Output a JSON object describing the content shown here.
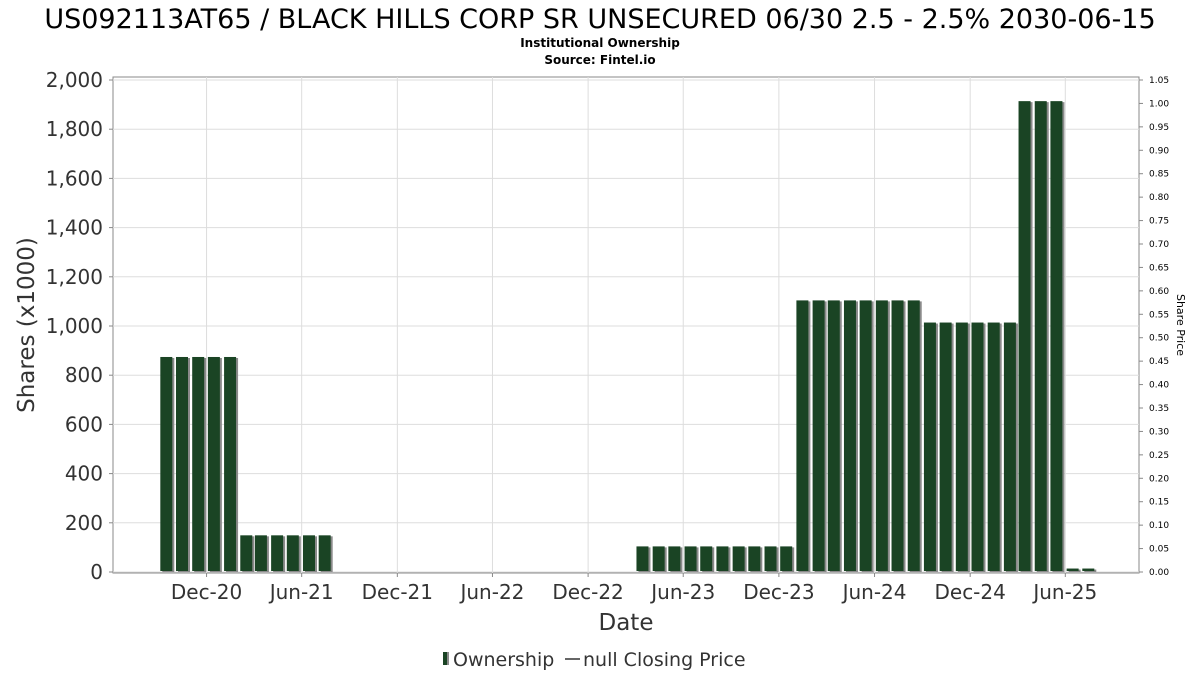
{
  "chart_data": {
    "type": "bar",
    "title": "US092113AT65 / BLACK HILLS CORP SR UNSECURED 06/30 2.5 - 2.5% 2030-06-15",
    "subtitle_lines": [
      "Institutional Ownership",
      "Source: Fintel.io"
    ],
    "xlabel": "Date",
    "ylabel": "Shares (x1000)",
    "y2label": "Share Price",
    "ylim": [
      0,
      2000
    ],
    "y2lim": [
      0,
      1.05
    ],
    "yticks": [
      0,
      200,
      400,
      600,
      800,
      1000,
      1200,
      1400,
      1600,
      1800,
      2000
    ],
    "ytick_labels": [
      "0",
      "200",
      "400",
      "600",
      "800",
      "1,000",
      "1,200",
      "1,400",
      "1,600",
      "1,800",
      "2,000"
    ],
    "y2ticks": [
      0,
      0.05,
      0.1,
      0.15,
      0.2,
      0.25,
      0.3,
      0.35,
      0.4,
      0.45,
      0.5,
      0.55,
      0.6,
      0.65,
      0.7,
      0.75,
      0.8,
      0.85,
      0.9,
      0.95,
      1.0,
      1.05
    ],
    "y2tick_labels": [
      "0.00",
      "0.05",
      "0.10",
      "0.15",
      "0.20",
      "0.25",
      "0.30",
      "0.35",
      "0.40",
      "0.45",
      "0.50",
      "0.55",
      "0.60",
      "0.65",
      "0.70",
      "0.75",
      "0.80",
      "0.85",
      "0.90",
      "0.95",
      "1.00",
      "1.05"
    ],
    "xlim": [
      "2020-06-05",
      "2025-10-20"
    ],
    "xticks": [
      {
        "date": "2020-12-01",
        "label": "Dec-20"
      },
      {
        "date": "2021-06-01",
        "label": "Jun-21"
      },
      {
        "date": "2021-12-01",
        "label": "Dec-21"
      },
      {
        "date": "2022-06-01",
        "label": "Jun-22"
      },
      {
        "date": "2022-12-01",
        "label": "Dec-22"
      },
      {
        "date": "2023-06-01",
        "label": "Jun-23"
      },
      {
        "date": "2023-12-01",
        "label": "Dec-23"
      },
      {
        "date": "2024-06-01",
        "label": "Jun-24"
      },
      {
        "date": "2024-12-01",
        "label": "Dec-24"
      },
      {
        "date": "2025-06-01",
        "label": "Jun-25"
      }
    ],
    "grid": true,
    "legend_position": "bottom-center",
    "legend": [
      {
        "label": "Ownership",
        "kind": "bar"
      },
      {
        "label": "null Closing Price",
        "kind": "line"
      }
    ],
    "colors": {
      "bar": "#1a4424",
      "bar_shadow": "#8a8a8a",
      "grid": "#dddddd",
      "axis": "#888888"
    },
    "series": [
      {
        "name": "Ownership",
        "points": [
          {
            "date": "2020-09-15",
            "value": 870
          },
          {
            "date": "2020-10-15",
            "value": 870
          },
          {
            "date": "2020-11-15",
            "value": 870
          },
          {
            "date": "2020-12-15",
            "value": 870
          },
          {
            "date": "2021-01-15",
            "value": 870
          },
          {
            "date": "2021-02-15",
            "value": 145
          },
          {
            "date": "2021-03-15",
            "value": 145
          },
          {
            "date": "2021-04-15",
            "value": 145
          },
          {
            "date": "2021-05-15",
            "value": 145
          },
          {
            "date": "2021-06-15",
            "value": 145
          },
          {
            "date": "2021-07-15",
            "value": 145
          },
          {
            "date": "2023-03-15",
            "value": 100
          },
          {
            "date": "2023-04-15",
            "value": 100
          },
          {
            "date": "2023-05-15",
            "value": 100
          },
          {
            "date": "2023-06-15",
            "value": 100
          },
          {
            "date": "2023-07-15",
            "value": 100
          },
          {
            "date": "2023-08-15",
            "value": 100
          },
          {
            "date": "2023-09-15",
            "value": 100
          },
          {
            "date": "2023-10-15",
            "value": 100
          },
          {
            "date": "2023-11-15",
            "value": 100
          },
          {
            "date": "2023-12-15",
            "value": 100
          },
          {
            "date": "2024-01-15",
            "value": 1100
          },
          {
            "date": "2024-02-15",
            "value": 1100
          },
          {
            "date": "2024-03-15",
            "value": 1100
          },
          {
            "date": "2024-04-15",
            "value": 1100
          },
          {
            "date": "2024-05-15",
            "value": 1100
          },
          {
            "date": "2024-06-15",
            "value": 1100
          },
          {
            "date": "2024-07-15",
            "value": 1100
          },
          {
            "date": "2024-08-15",
            "value": 1100
          },
          {
            "date": "2024-09-15",
            "value": 1010
          },
          {
            "date": "2024-10-15",
            "value": 1010
          },
          {
            "date": "2024-11-15",
            "value": 1010
          },
          {
            "date": "2024-12-15",
            "value": 1010
          },
          {
            "date": "2025-01-15",
            "value": 1010
          },
          {
            "date": "2025-02-15",
            "value": 1010
          },
          {
            "date": "2025-03-15",
            "value": 1910
          },
          {
            "date": "2025-04-15",
            "value": 1910
          },
          {
            "date": "2025-05-15",
            "value": 1910
          },
          {
            "date": "2025-06-15",
            "value": 10
          },
          {
            "date": "2025-07-15",
            "value": 10
          }
        ]
      }
    ]
  }
}
